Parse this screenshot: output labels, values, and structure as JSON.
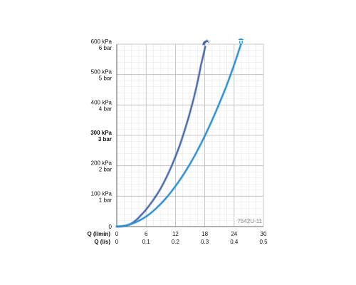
{
  "chart_data": {
    "type": "line",
    "title": "",
    "xlabel_primary": "Q (l/min)",
    "xlabel_secondary": "Q (l/s)",
    "ylabel": "",
    "x_ticks_lmin": [
      "0",
      "6",
      "12",
      "18",
      "24",
      "30"
    ],
    "x_ticks_ls": [
      "0",
      "0.1",
      "0.2",
      "0.3",
      "0.4",
      "0.5"
    ],
    "y_ticks": [
      {
        "value": 0,
        "kpa": "0",
        "bar": "",
        "bold": false
      },
      {
        "value": 100,
        "kpa": "100 kPa",
        "bar": "1 bar",
        "bold": false
      },
      {
        "value": 200,
        "kpa": "200 kPa",
        "bar": "2 bar",
        "bold": false
      },
      {
        "value": 300,
        "kpa": "300 kPa",
        "bar": "3 bar",
        "bold": true
      },
      {
        "value": 400,
        "kpa": "400 kPa",
        "bar": "4 bar",
        "bold": false
      },
      {
        "value": 500,
        "kpa": "500 kPa",
        "bar": "5 bar",
        "bold": false
      },
      {
        "value": 600,
        "kpa": "600 kPa",
        "bar": "6 bar",
        "bold": false
      }
    ],
    "xlim": [
      0,
      30
    ],
    "ylim": [
      0,
      600
    ],
    "grid": true,
    "code_label": "7542U-11",
    "series": [
      {
        "icon": "handshower-icon",
        "color": "#4a6aa8",
        "points": [
          [
            0,
            0
          ],
          [
            1,
            0.5
          ],
          [
            2,
            3
          ],
          [
            3,
            10
          ],
          [
            4,
            22
          ],
          [
            5,
            38
          ],
          [
            6,
            56
          ],
          [
            7,
            77
          ],
          [
            8,
            100
          ],
          [
            9,
            126
          ],
          [
            10,
            157
          ],
          [
            11,
            191
          ],
          [
            12,
            230
          ],
          [
            13,
            273
          ],
          [
            14,
            322
          ],
          [
            15,
            377
          ],
          [
            16,
            439
          ],
          [
            17,
            512
          ],
          [
            17.2,
            530
          ],
          [
            17.5,
            550
          ],
          [
            17.8,
            570
          ],
          [
            18.1,
            592
          ]
        ]
      },
      {
        "icon": "overhead-shower-icon",
        "color": "#2e8fcf",
        "points": [
          [
            0,
            0
          ],
          [
            2,
            4
          ],
          [
            4,
            15
          ],
          [
            6,
            33
          ],
          [
            8,
            59
          ],
          [
            10,
            92
          ],
          [
            12,
            133
          ],
          [
            14,
            180
          ],
          [
            16,
            235
          ],
          [
            18,
            298
          ],
          [
            20,
            368
          ],
          [
            22,
            445
          ],
          [
            23,
            487
          ],
          [
            24,
            532
          ],
          [
            25,
            580
          ],
          [
            25.4,
            600
          ]
        ]
      }
    ]
  }
}
